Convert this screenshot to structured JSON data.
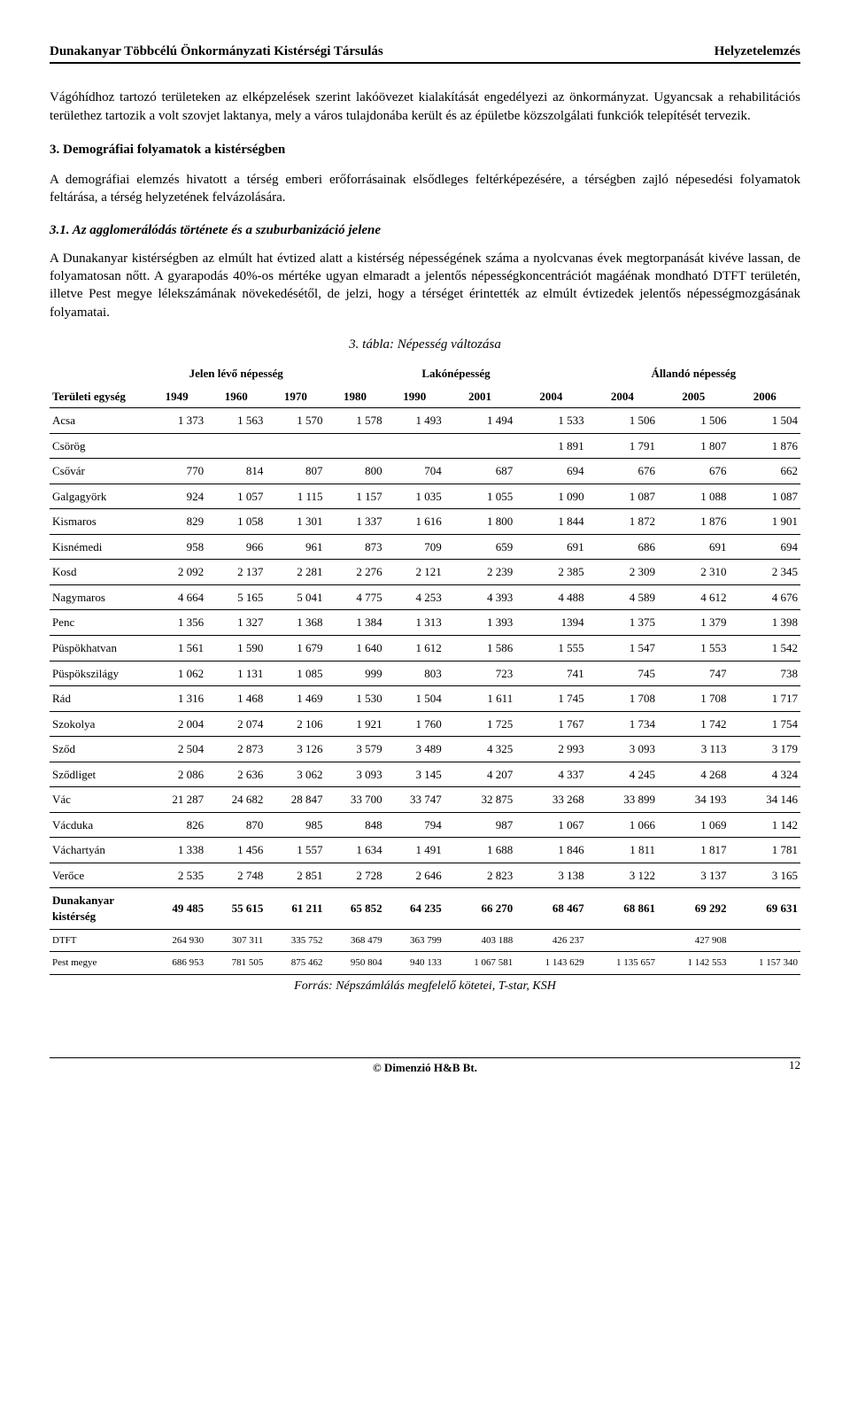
{
  "header": {
    "left": "Dunakanyar Többcélú Önkormányzati Kistérségi Társulás",
    "right": "Helyzetelemzés"
  },
  "paragraphs": {
    "p1": "Vágóhídhoz tartozó területeken az elképzelések szerint lakóövezet kialakítását engedélyezi az önkormányzat. Ugyancsak a rehabilitációs területhez tartozik a volt szovjet laktanya, mely a város tulajdonába került és az épületbe közszolgálati funkciók telepítését tervezik.",
    "p2": "A demográfiai elemzés hivatott a térség emberi erőforrásainak elsődleges feltérképezésére, a térségben zajló népesedési folyamatok feltárása, a térség helyzetének felvázolására.",
    "p3": "A Dunakanyar kistérségben az elmúlt hat évtized alatt a kistérség népességének száma a nyolcvanas évek megtorpanását kivéve lassan, de folyamatosan nőtt. A gyarapodás 40%-os mértéke ugyan elmaradt a jelentős népességkoncentrációt magáénak mondható DTFT területén, illetve Pest megye lélekszámának növekedésétől, de jelzi, hogy a térséget érintették az elmúlt évtizedek jelentős népességmozgásának folyamatai."
  },
  "headings": {
    "section": "3. Demográfiai folyamatok a kistérségben",
    "sub": "3.1. Az agglomerálódás története és a szuburbanizáció jelene",
    "table_caption": "3. tábla: Népesség változása"
  },
  "table": {
    "row_header_label": "Területi egység",
    "groups": [
      "Jelen lévő népesség",
      "Lakónépesség",
      "Állandó népesség"
    ],
    "years": [
      "1949",
      "1960",
      "1970",
      "1980",
      "1990",
      "2001",
      "2004",
      "2004",
      "2005",
      "2006"
    ],
    "rows": [
      {
        "name": "Acsa",
        "cells": [
          "1 373",
          "1 563",
          "1 570",
          "1 578",
          "1 493",
          "1 494",
          "1 533",
          "1 506",
          "1 506",
          "1 504"
        ]
      },
      {
        "name": "Csörög",
        "cells": [
          "",
          "",
          "",
          "",
          "",
          "",
          "1 891",
          "1 791",
          "1 807",
          "1 876"
        ]
      },
      {
        "name": "Csővár",
        "cells": [
          "770",
          "814",
          "807",
          "800",
          "704",
          "687",
          "694",
          "676",
          "676",
          "662"
        ]
      },
      {
        "name": "Galgagyörk",
        "cells": [
          "924",
          "1 057",
          "1 115",
          "1 157",
          "1 035",
          "1 055",
          "1 090",
          "1 087",
          "1 088",
          "1 087"
        ]
      },
      {
        "name": "Kismaros",
        "cells": [
          "829",
          "1 058",
          "1 301",
          "1 337",
          "1 616",
          "1 800",
          "1 844",
          "1 872",
          "1 876",
          "1 901"
        ]
      },
      {
        "name": "Kisnémedi",
        "cells": [
          "958",
          "966",
          "961",
          "873",
          "709",
          "659",
          "691",
          "686",
          "691",
          "694"
        ]
      },
      {
        "name": "Kosd",
        "cells": [
          "2 092",
          "2 137",
          "2 281",
          "2 276",
          "2 121",
          "2 239",
          "2 385",
          "2 309",
          "2 310",
          "2 345"
        ]
      },
      {
        "name": "Nagymaros",
        "cells": [
          "4 664",
          "5 165",
          "5 041",
          "4 775",
          "4 253",
          "4 393",
          "4 488",
          "4 589",
          "4 612",
          "4 676"
        ]
      },
      {
        "name": "Penc",
        "cells": [
          "1 356",
          "1 327",
          "1 368",
          "1 384",
          "1 313",
          "1 393",
          "1394",
          "1 375",
          "1 379",
          "1 398"
        ]
      },
      {
        "name": "Püspökhatvan",
        "cells": [
          "1 561",
          "1 590",
          "1 679",
          "1 640",
          "1 612",
          "1 586",
          "1 555",
          "1 547",
          "1 553",
          "1 542"
        ]
      },
      {
        "name": "Püspökszilágy",
        "cells": [
          "1 062",
          "1 131",
          "1 085",
          "999",
          "803",
          "723",
          "741",
          "745",
          "747",
          "738"
        ]
      },
      {
        "name": "Rád",
        "cells": [
          "1 316",
          "1 468",
          "1 469",
          "1 530",
          "1 504",
          "1 611",
          "1 745",
          "1 708",
          "1 708",
          "1 717"
        ]
      },
      {
        "name": "Szokolya",
        "cells": [
          "2 004",
          "2 074",
          "2 106",
          "1 921",
          "1 760",
          "1 725",
          "1 767",
          "1 734",
          "1 742",
          "1 754"
        ]
      },
      {
        "name": "Sződ",
        "cells": [
          "2 504",
          "2 873",
          "3 126",
          "3 579",
          "3 489",
          "4 325",
          "2 993",
          "3 093",
          "3 113",
          "3 179"
        ]
      },
      {
        "name": "Sződliget",
        "cells": [
          "2 086",
          "2 636",
          "3 062",
          "3 093",
          "3 145",
          "4 207",
          "4 337",
          "4 245",
          "4 268",
          "4 324"
        ]
      },
      {
        "name": "Vác",
        "cells": [
          "21 287",
          "24 682",
          "28 847",
          "33 700",
          "33 747",
          "32 875",
          "33 268",
          "33 899",
          "34 193",
          "34 146"
        ]
      },
      {
        "name": "Vácduka",
        "cells": [
          "826",
          "870",
          "985",
          "848",
          "794",
          "987",
          "1 067",
          "1 066",
          "1 069",
          "1 142"
        ]
      },
      {
        "name": "Váchartyán",
        "cells": [
          "1 338",
          "1 456",
          "1 557",
          "1 634",
          "1 491",
          "1 688",
          "1 846",
          "1 811",
          "1 817",
          "1 781"
        ]
      },
      {
        "name": "Verőce",
        "cells": [
          "2 535",
          "2 748",
          "2 851",
          "2 728",
          "2 646",
          "2 823",
          "3 138",
          "3 122",
          "3 137",
          "3 165"
        ]
      },
      {
        "name": "Dunakanyar kistérség",
        "cells": [
          "49 485",
          "55 615",
          "61 211",
          "65 852",
          "64 235",
          "66 270",
          "68 467",
          "68 861",
          "69 292",
          "69 631"
        ],
        "bold": true
      },
      {
        "name": "DTFT",
        "cells": [
          "264 930",
          "307 311",
          "335 752",
          "368 479",
          "363 799",
          "403 188",
          "426 237",
          "",
          "427 908",
          ""
        ],
        "small": true
      },
      {
        "name": "Pest megye",
        "cells": [
          "686 953",
          "781 505",
          "875 462",
          "950 804",
          "940 133",
          "1 067 581",
          "1 143 629",
          "1 135 657",
          "1 142 553",
          "1 157 340"
        ],
        "small": true
      }
    ],
    "source": "Forrás: Népszámlálás megfelelő kötetei, T-star, KSH"
  },
  "footer": {
    "copy": "© Dimenzió H&B Bt.",
    "page": "12"
  }
}
